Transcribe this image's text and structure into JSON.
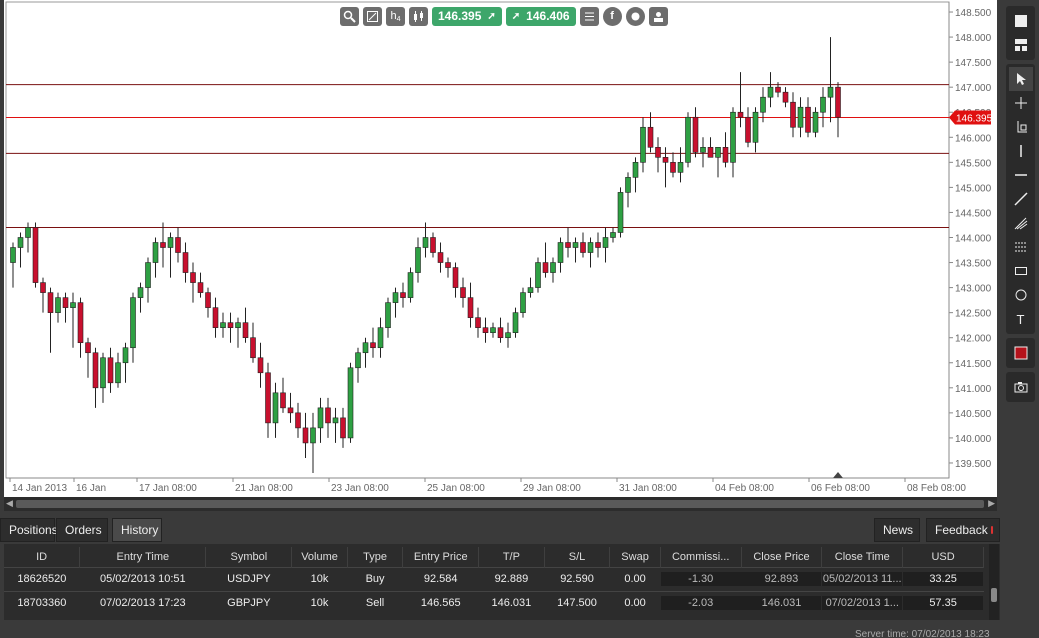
{
  "toolbar": {
    "icons": [
      "zoom-icon",
      "settings-icon",
      "timeframe-icon",
      "candle-type-icon",
      "list-icon",
      "facebook-icon",
      "crowd-icon",
      "profile-icon"
    ],
    "timeframe_label": "h",
    "timeframe_sub": "4",
    "sell_price": "146.395",
    "buy_price": "146.406",
    "colors": {
      "price_button": "#3da66a",
      "icon_bg": "#6d6d6d"
    }
  },
  "chart_data": {
    "type": "candlestick",
    "symbol": "GBPJPY",
    "timeframe": "H4",
    "y_axis_ticks": [
      "148.500",
      "148.000",
      "147.500",
      "147.000",
      "146.500",
      "146.000",
      "145.500",
      "145.000",
      "144.500",
      "144.000",
      "143.500",
      "143.000",
      "142.500",
      "142.000",
      "141.500",
      "141.000",
      "140.500",
      "140.000",
      "139.500"
    ],
    "ylim": [
      139.2,
      148.7
    ],
    "x_axis_labels": [
      "14 Jan 2013",
      "16 Jan",
      "17 Jan 08:00",
      "21 Jan 08:00",
      "23 Jan 08:00",
      "25 Jan 08:00",
      "29 Jan 08:00",
      "31 Jan 08:00",
      "04 Feb 08:00",
      "06 Feb 08:00",
      "08 Feb 08:00"
    ],
    "current_price": 146.395,
    "current_price_label": "146.395",
    "horizontal_lines": [
      147.05,
      145.68,
      144.2
    ],
    "candles_ohlc": [
      [
        143.5,
        143.9,
        143.0,
        143.8
      ],
      [
        143.8,
        144.1,
        143.4,
        144.0
      ],
      [
        144.0,
        144.3,
        143.7,
        144.2
      ],
      [
        144.2,
        144.3,
        143.0,
        143.1
      ],
      [
        143.1,
        143.2,
        142.5,
        142.9
      ],
      [
        142.9,
        143.0,
        141.7,
        142.5
      ],
      [
        142.5,
        142.9,
        142.3,
        142.8
      ],
      [
        142.8,
        142.9,
        142.3,
        142.6
      ],
      [
        142.6,
        142.9,
        141.8,
        142.7
      ],
      [
        142.7,
        142.8,
        141.6,
        141.9
      ],
      [
        141.9,
        142.0,
        141.2,
        141.7
      ],
      [
        141.7,
        141.8,
        140.6,
        141.0
      ],
      [
        141.0,
        141.7,
        140.7,
        141.6
      ],
      [
        141.6,
        141.8,
        140.9,
        141.1
      ],
      [
        141.1,
        141.7,
        141.0,
        141.5
      ],
      [
        141.5,
        141.9,
        141.1,
        141.8
      ],
      [
        141.8,
        142.9,
        141.5,
        142.8
      ],
      [
        142.8,
        143.1,
        142.5,
        143.0
      ],
      [
        143.0,
        143.6,
        142.7,
        143.5
      ],
      [
        143.5,
        144.0,
        143.2,
        143.9
      ],
      [
        143.9,
        144.3,
        143.4,
        143.8
      ],
      [
        143.8,
        144.1,
        143.2,
        144.0
      ],
      [
        144.0,
        144.2,
        143.5,
        143.7
      ],
      [
        143.7,
        143.9,
        143.1,
        143.3
      ],
      [
        143.3,
        143.5,
        142.7,
        143.1
      ],
      [
        143.1,
        143.3,
        142.8,
        142.9
      ],
      [
        142.9,
        143.0,
        142.4,
        142.6
      ],
      [
        142.6,
        142.8,
        142.0,
        142.2
      ],
      [
        142.2,
        142.5,
        142.0,
        142.3
      ],
      [
        142.3,
        142.5,
        141.9,
        142.2
      ],
      [
        142.2,
        142.4,
        141.8,
        142.3
      ],
      [
        142.3,
        142.6,
        141.9,
        142.0
      ],
      [
        142.0,
        142.3,
        141.5,
        141.6
      ],
      [
        141.6,
        141.9,
        141.0,
        141.3
      ],
      [
        141.3,
        141.5,
        140.0,
        140.3
      ],
      [
        140.3,
        141.1,
        140.0,
        140.9
      ],
      [
        140.9,
        141.2,
        140.5,
        140.6
      ],
      [
        140.6,
        140.9,
        140.3,
        140.5
      ],
      [
        140.5,
        140.7,
        140.0,
        140.2
      ],
      [
        140.2,
        140.5,
        139.6,
        139.9
      ],
      [
        139.9,
        140.5,
        139.3,
        140.2
      ],
      [
        140.2,
        140.8,
        139.9,
        140.6
      ],
      [
        140.6,
        140.8,
        140.0,
        140.3
      ],
      [
        140.3,
        140.6,
        139.9,
        140.4
      ],
      [
        140.4,
        140.6,
        139.8,
        140.0
      ],
      [
        140.0,
        141.5,
        139.9,
        141.4
      ],
      [
        141.4,
        141.8,
        141.1,
        141.7
      ],
      [
        141.7,
        142.0,
        141.4,
        141.9
      ],
      [
        141.9,
        142.2,
        141.6,
        141.8
      ],
      [
        141.8,
        142.4,
        141.6,
        142.2
      ],
      [
        142.2,
        142.8,
        142.0,
        142.7
      ],
      [
        142.7,
        143.0,
        142.4,
        142.9
      ],
      [
        142.9,
        143.1,
        142.6,
        142.8
      ],
      [
        142.8,
        143.4,
        142.7,
        143.3
      ],
      [
        143.3,
        144.0,
        143.1,
        143.8
      ],
      [
        143.8,
        144.3,
        143.6,
        144.0
      ],
      [
        144.0,
        144.1,
        143.6,
        143.7
      ],
      [
        143.7,
        143.9,
        143.3,
        143.5
      ],
      [
        143.5,
        143.6,
        143.2,
        143.4
      ],
      [
        143.4,
        143.5,
        142.8,
        143.0
      ],
      [
        143.0,
        143.2,
        142.6,
        142.8
      ],
      [
        142.8,
        143.1,
        142.2,
        142.4
      ],
      [
        142.4,
        142.6,
        142.0,
        142.2
      ],
      [
        142.2,
        142.4,
        141.9,
        142.1
      ],
      [
        142.1,
        142.3,
        142.0,
        142.2
      ],
      [
        142.2,
        142.4,
        141.9,
        142.0
      ],
      [
        142.0,
        142.3,
        141.8,
        142.1
      ],
      [
        142.1,
        142.6,
        142.0,
        142.5
      ],
      [
        142.5,
        143.0,
        142.4,
        142.9
      ],
      [
        142.9,
        143.2,
        142.8,
        143.0
      ],
      [
        143.0,
        143.6,
        142.9,
        143.5
      ],
      [
        143.5,
        143.9,
        143.2,
        143.3
      ],
      [
        143.3,
        143.6,
        143.1,
        143.5
      ],
      [
        143.5,
        144.0,
        143.3,
        143.9
      ],
      [
        143.9,
        144.2,
        143.6,
        143.8
      ],
      [
        143.8,
        144.0,
        143.5,
        143.9
      ],
      [
        143.9,
        144.1,
        143.6,
        143.7
      ],
      [
        143.7,
        144.0,
        143.4,
        143.9
      ],
      [
        143.9,
        144.1,
        143.6,
        143.8
      ],
      [
        143.8,
        144.2,
        143.5,
        144.0
      ],
      [
        144.0,
        144.2,
        143.9,
        144.1
      ],
      [
        144.1,
        145.0,
        144.0,
        144.9
      ],
      [
        144.9,
        145.3,
        144.6,
        145.2
      ],
      [
        145.2,
        145.6,
        144.9,
        145.5
      ],
      [
        145.5,
        146.4,
        145.3,
        146.2
      ],
      [
        146.2,
        146.5,
        145.7,
        145.8
      ],
      [
        145.8,
        146.0,
        145.3,
        145.6
      ],
      [
        145.6,
        145.8,
        145.0,
        145.5
      ],
      [
        145.5,
        145.7,
        145.2,
        145.3
      ],
      [
        145.3,
        145.8,
        145.1,
        145.5
      ],
      [
        145.5,
        146.5,
        145.4,
        146.4
      ],
      [
        146.4,
        146.6,
        145.6,
        145.7
      ],
      [
        145.7,
        146.0,
        145.4,
        145.8
      ],
      [
        145.8,
        146.0,
        145.6,
        145.6
      ],
      [
        145.6,
        145.8,
        145.2,
        145.8
      ],
      [
        145.8,
        146.1,
        145.4,
        145.5
      ],
      [
        145.5,
        146.6,
        145.2,
        146.5
      ],
      [
        146.5,
        147.3,
        146.2,
        146.4
      ],
      [
        146.4,
        146.6,
        145.8,
        145.9
      ],
      [
        145.9,
        146.6,
        145.7,
        146.5
      ],
      [
        146.5,
        147.0,
        146.3,
        146.8
      ],
      [
        146.8,
        147.3,
        146.6,
        147.0
      ],
      [
        147.0,
        147.1,
        146.8,
        146.9
      ],
      [
        146.9,
        147.0,
        146.6,
        146.7
      ],
      [
        146.7,
        146.9,
        146.0,
        146.2
      ],
      [
        146.2,
        146.8,
        146.0,
        146.6
      ],
      [
        146.6,
        146.8,
        146.0,
        146.1
      ],
      [
        146.1,
        146.6,
        146.0,
        146.5
      ],
      [
        146.5,
        147.0,
        146.2,
        146.8
      ],
      [
        146.8,
        148.0,
        146.3,
        147.0
      ],
      [
        147.0,
        147.1,
        146.0,
        146.4
      ]
    ]
  },
  "right_toolbar": {
    "tools": [
      "window-icon",
      "layout-icon",
      "cursor-icon",
      "crosshair-icon",
      "measure-icon",
      "vertical-line-icon",
      "horizontal-line-icon",
      "trend-line-icon",
      "fibonacci-icon",
      "fibonacci-levels-icon",
      "rectangle-icon",
      "ellipse-icon",
      "text-icon",
      "color-swatch",
      "camera-icon"
    ],
    "text_tool_label": "T",
    "color_swatch": "#b5121b"
  },
  "tabs": {
    "positions": "Positions",
    "orders": "Orders",
    "history": "History",
    "news": "News",
    "feedback": "Feedback"
  },
  "history": {
    "columns": [
      "ID",
      "Entry Time",
      "Symbol",
      "Volume",
      "Type",
      "Entry Price",
      "T/P",
      "S/L",
      "Swap",
      "Commissi...",
      "Close Price",
      "Close Time",
      "USD"
    ],
    "rows": [
      {
        "id": "18626520",
        "entry_time": "05/02/2013 10:51",
        "symbol": "USDJPY",
        "volume": "10k",
        "type": "Buy",
        "entry_price": "92.584",
        "tp": "92.889",
        "sl": "92.590",
        "swap": "0.00",
        "commission": "-1.30",
        "close_price": "92.893",
        "close_time": "05/02/2013 11...",
        "usd": "33.25"
      },
      {
        "id": "18703360",
        "entry_time": "07/02/2013 17:23",
        "symbol": "GBPJPY",
        "volume": "10k",
        "type": "Sell",
        "entry_price": "146.565",
        "tp": "146.031",
        "sl": "147.500",
        "swap": "0.00",
        "commission": "-2.03",
        "close_price": "146.031",
        "close_time": "07/02/2013 1...",
        "usd": "57.35"
      }
    ]
  },
  "status": {
    "server_time": "Server time: 07/02/2013 18:23"
  }
}
